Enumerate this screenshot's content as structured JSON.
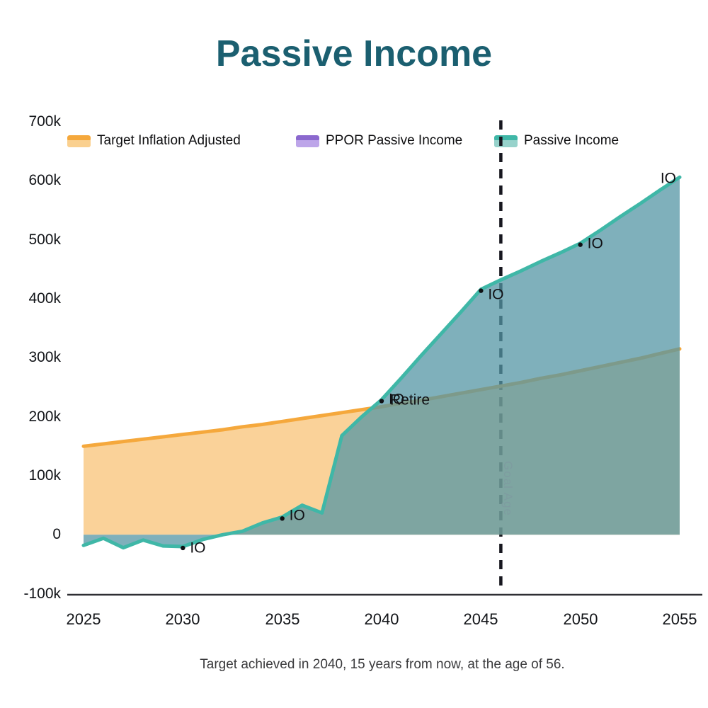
{
  "title": "Passive Income",
  "caption": "Target achieved in 2040, 15 years from now, at the age of 56.",
  "legend": {
    "items": [
      {
        "label": "Target Inflation Adjusted",
        "line_color": "#F5A83C",
        "swatch_fill": "#FAD08F"
      },
      {
        "label": "PPOR Passive Income",
        "line_color": "#8B68CE",
        "swatch_fill": "#BDA5E9"
      },
      {
        "label": "Passive Income",
        "line_color": "#3FB7A7",
        "swatch_fill": "#97D2CB"
      }
    ]
  },
  "chart_data": {
    "type": "area",
    "title": "Passive Income",
    "unit": "thousands",
    "ylim": [
      -100,
      700
    ],
    "grid": false,
    "legend_position": "top",
    "y_tick_labels": [
      "700k",
      "600k",
      "500k",
      "400k",
      "300k",
      "200k",
      "100k",
      "0",
      "-100k"
    ],
    "x_tick_labels": [
      "2025",
      "2030",
      "2035",
      "2040",
      "2045",
      "2050",
      "2055"
    ],
    "x": [
      2025,
      2026,
      2027,
      2028,
      2029,
      2030,
      2031,
      2032,
      2033,
      2034,
      2035,
      2036,
      2037,
      2038,
      2039,
      2040,
      2041,
      2042,
      2043,
      2044,
      2045,
      2046,
      2047,
      2048,
      2049,
      2050,
      2051,
      2052,
      2053,
      2054,
      2055
    ],
    "series": [
      {
        "name": "Target Inflation Adjusted",
        "line_color": "#F5A83C",
        "fill_color": "rgba(246,173,70,0.55)",
        "values": [
          150,
          154,
          158,
          162,
          166,
          170,
          174,
          178,
          183,
          187,
          192,
          197,
          202,
          207,
          212,
          217,
          223,
          228,
          234,
          240,
          246,
          252,
          258,
          265,
          271,
          278,
          285,
          292,
          299,
          307,
          315
        ]
      },
      {
        "name": "PPOR Passive Income",
        "line_color": "#8B68CE",
        "fill_color": "rgba(150,115,220,0.5)",
        "values": [
          0,
          0,
          0,
          0,
          0,
          0,
          0,
          0,
          0,
          0,
          0,
          0,
          0,
          0,
          0,
          0,
          0,
          0,
          0,
          0,
          0,
          0,
          0,
          0,
          0,
          0,
          0,
          0,
          0,
          0,
          0
        ]
      },
      {
        "name": "Passive Income",
        "line_color": "#3FB7A7",
        "fill_color": "rgba(84,150,164,0.75)",
        "values": [
          -18,
          -6,
          -22,
          -9,
          -19,
          -20,
          -8,
          0,
          6,
          20,
          30,
          50,
          37,
          168,
          200,
          229,
          266,
          304,
          341,
          378,
          416,
          432,
          447,
          463,
          478,
          494,
          516,
          539,
          561,
          584,
          606
        ]
      }
    ],
    "goal_line": {
      "label": "Goal Age",
      "year": 2046,
      "style": "dashed"
    },
    "annotations": [
      {
        "year": 2030,
        "value": -20,
        "label": "IO",
        "dot": true,
        "side": "right",
        "dy": 2
      },
      {
        "year": 2035,
        "value": 30,
        "label": "IO",
        "dot": true,
        "side": "right",
        "dy": -2
      },
      {
        "year": 2040,
        "value": 229,
        "label": "IO",
        "dot": true,
        "side": "right",
        "dy": 0
      },
      {
        "year": 2040,
        "value": 229,
        "label": "Retire",
        "dot": false,
        "side": "right",
        "dx": 2,
        "dy": 1
      },
      {
        "year": 2045,
        "value": 416,
        "label": "IO",
        "dot": true,
        "side": "right",
        "dy": 7
      },
      {
        "year": 2050,
        "value": 494,
        "label": "IO",
        "dot": true,
        "side": "right",
        "dy": 0
      },
      {
        "year": 2055,
        "value": 606,
        "label": "IO",
        "dot": false,
        "side": "left",
        "dx": -5,
        "dy": 2
      }
    ]
  }
}
